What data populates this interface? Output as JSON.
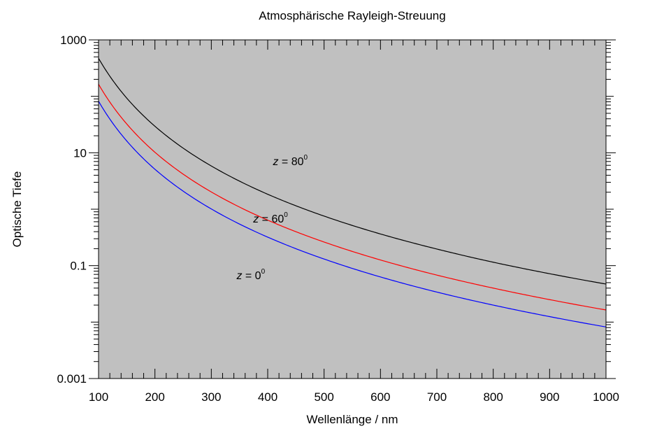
{
  "chart_data": {
    "type": "line",
    "title": "Atmosphärische Rayleigh-Streuung",
    "xlabel": "Wellenlänge / nm",
    "ylabel": "Optische Tiefe",
    "xlim": [
      100,
      1000
    ],
    "ylim": [
      0.001,
      1000
    ],
    "yscale": "log",
    "grid": false,
    "background_color": "#c0c0c0",
    "x_ticks": [
      100,
      200,
      300,
      400,
      500,
      600,
      700,
      800,
      900,
      1000
    ],
    "x_tick_labels": [
      "100",
      "200",
      "300",
      "400",
      "500",
      "600",
      "700",
      "800",
      "900",
      "1000"
    ],
    "y_ticks": [
      0.001,
      0.1,
      10,
      1000
    ],
    "y_tick_labels": [
      "0.001",
      "0.1",
      "10",
      "1000"
    ],
    "series": [
      {
        "color": "#0000ff",
        "x": [
          100,
          150,
          200,
          300,
          400,
          500,
          600,
          700,
          800,
          900,
          1000
        ],
        "y": [
          82,
          16.2,
          5.1,
          1.01,
          0.32,
          0.131,
          0.063,
          0.034,
          0.02,
          0.0125,
          0.0082
        ]
      },
      {
        "color": "#ff0000",
        "x": [
          100,
          150,
          200,
          300,
          400,
          500,
          600,
          700,
          800,
          900,
          1000
        ],
        "y": [
          164,
          32.4,
          10.2,
          2.02,
          0.64,
          0.262,
          0.126,
          0.068,
          0.04,
          0.025,
          0.0164
        ]
      },
      {
        "color": "#000000",
        "x": [
          100,
          150,
          200,
          300,
          400,
          500,
          600,
          700,
          800,
          900,
          1000
        ],
        "y": [
          472,
          93,
          29.5,
          5.83,
          1.84,
          0.755,
          0.364,
          0.197,
          0.115,
          0.072,
          0.0472
        ]
      }
    ],
    "annotations": [
      {
        "prefix": "z",
        "text": " = 80",
        "sup": "0",
        "x": 440,
        "y": 6.0
      },
      {
        "prefix": "z",
        "text": " = 60",
        "sup": "0",
        "x": 405,
        "y": 0.58
      },
      {
        "prefix": "z",
        "text": " = 0",
        "sup": "0",
        "x": 370,
        "y": 0.058
      }
    ]
  }
}
